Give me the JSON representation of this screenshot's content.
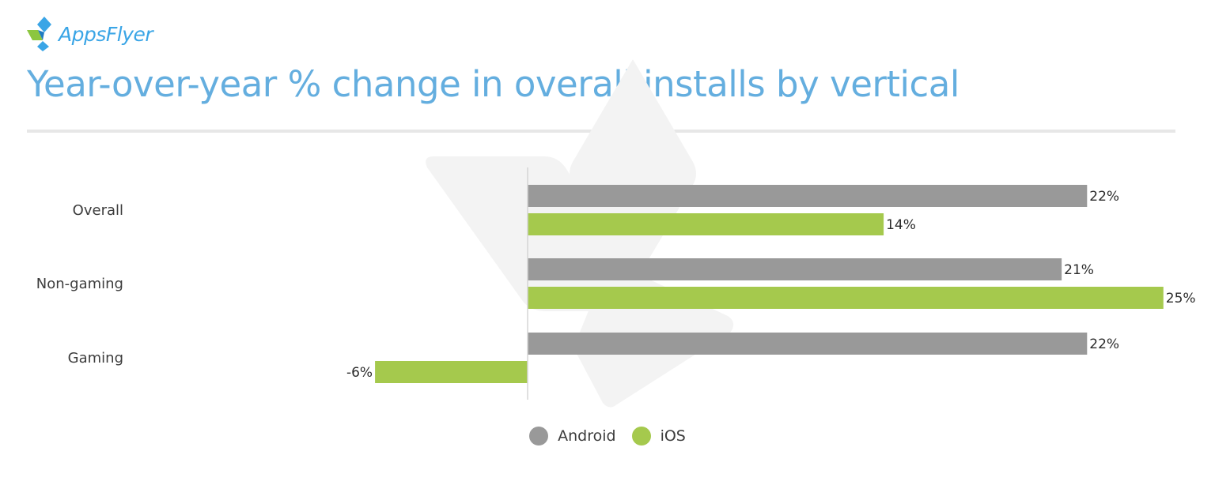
{
  "brand": {
    "logo_text": "AppsFlyer",
    "logo_colors": [
      "#8cc63f",
      "#3aa5e6",
      "#1f7bc1"
    ]
  },
  "title": "Year-over-year % change in overall installs by vertical",
  "colors": {
    "title": "#64aedf",
    "android": "#999999",
    "ios": "#a5c94d",
    "divider": "#e7e7e7",
    "axis": "#d5d5d5"
  },
  "chart_data": {
    "type": "bar",
    "orientation": "horizontal",
    "categories": [
      "Overall",
      "Non-gaming",
      "Gaming"
    ],
    "series": [
      {
        "name": "Android",
        "values": [
          22,
          21,
          22
        ],
        "labels": [
          "22%",
          "21%",
          "22%"
        ]
      },
      {
        "name": "iOS",
        "values": [
          14,
          25,
          -6
        ],
        "labels": [
          "14%",
          "25%",
          "-6%"
        ]
      }
    ],
    "unit": "%",
    "xlim": [
      -6,
      25
    ],
    "grid": false,
    "legend_position": "bottom-center",
    "title": "Year-over-year % change in overall installs by vertical"
  },
  "legend": [
    {
      "label": "Android",
      "color": "#999999"
    },
    {
      "label": "iOS",
      "color": "#a5c94d"
    }
  ]
}
